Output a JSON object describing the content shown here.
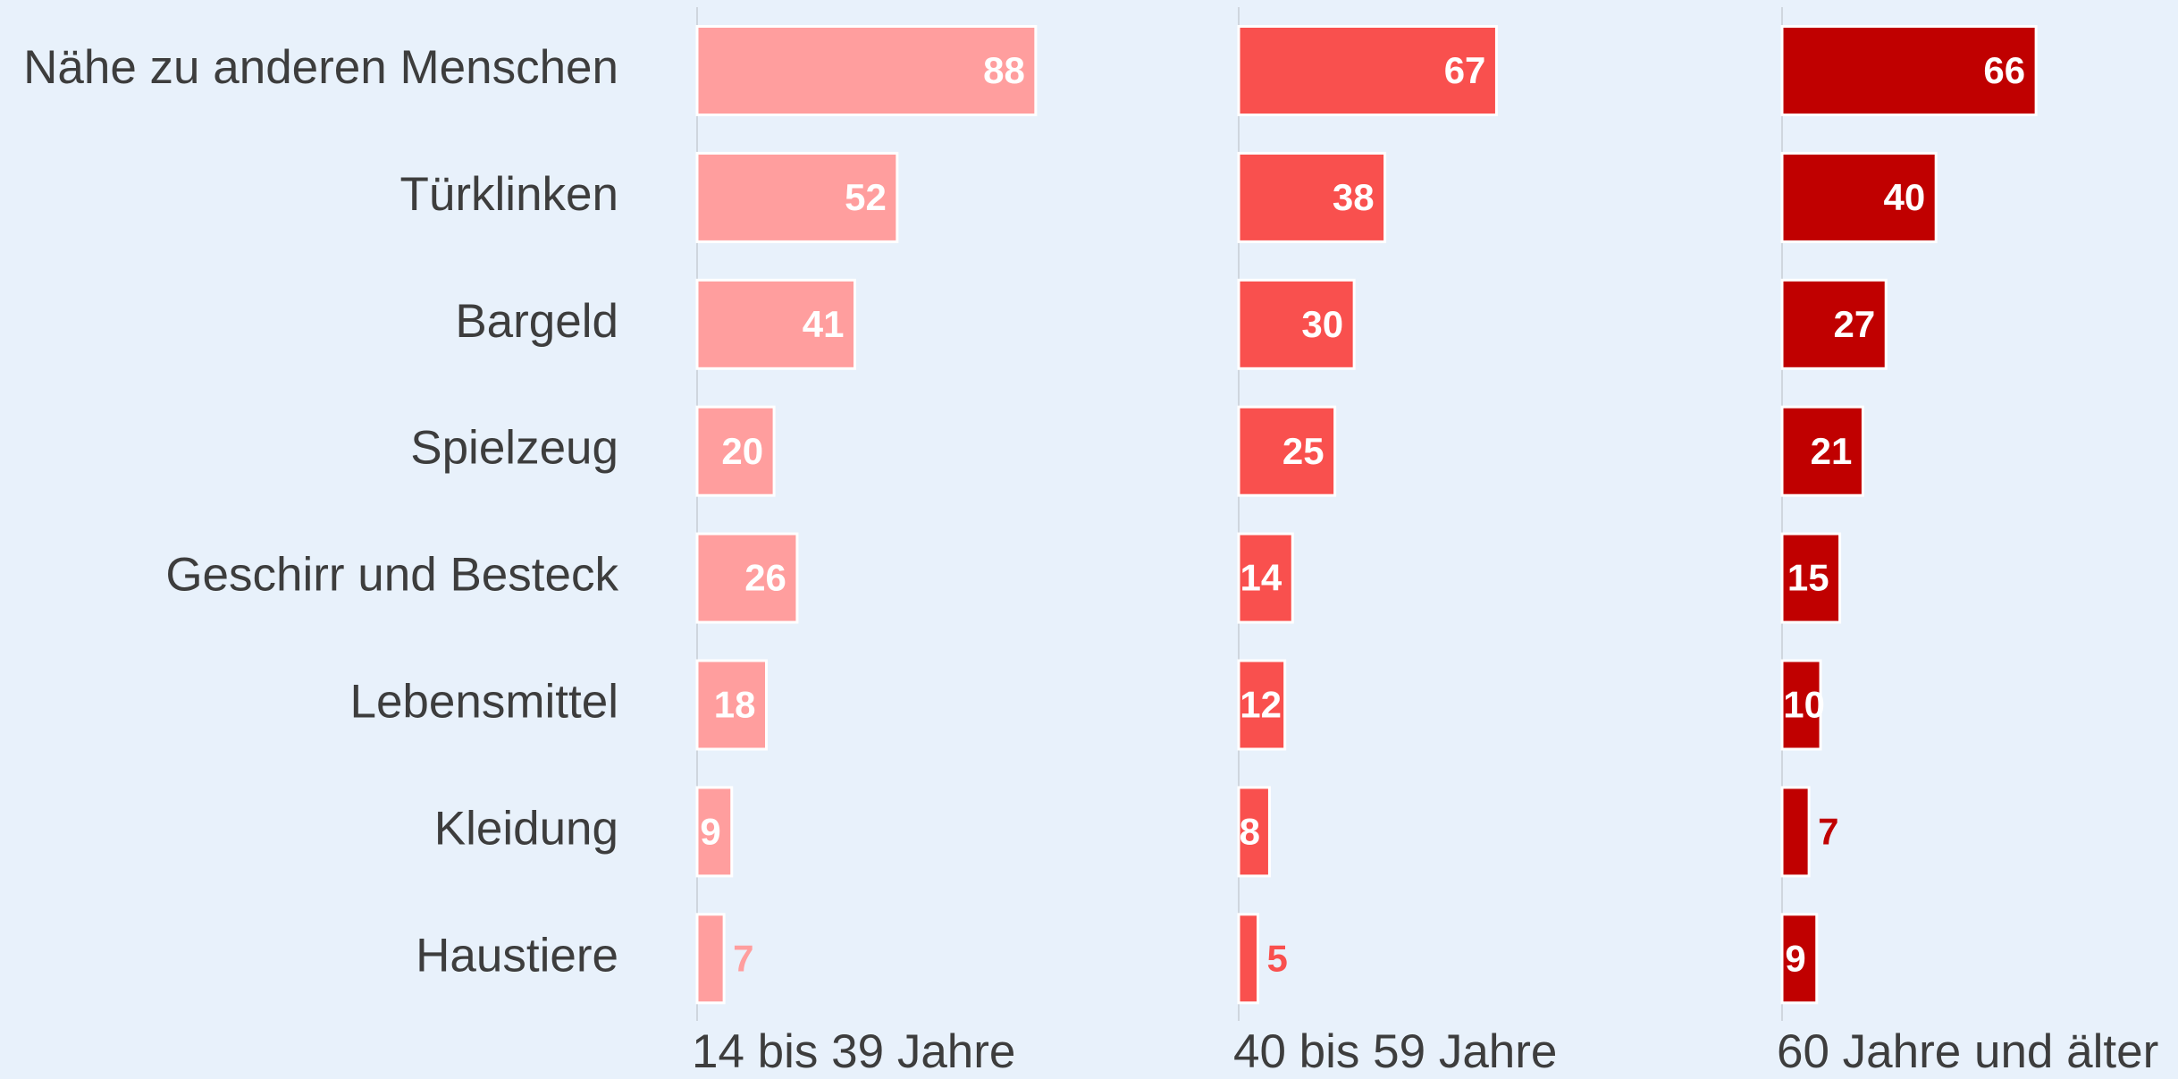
{
  "chart_data": {
    "type": "bar",
    "orientation": "horizontal",
    "categories": [
      "Nähe zu anderen Menschen",
      "Türklinken",
      "Bargeld",
      "Spielzeug",
      "Geschirr und Besteck",
      "Lebensmittel",
      "Kleidung",
      "Haustiere"
    ],
    "series": [
      {
        "name": "14 bis 39 Jahre",
        "color": "#ff9e9e",
        "values": [
          88,
          52,
          41,
          20,
          26,
          18,
          9,
          7
        ]
      },
      {
        "name": "40 bis 59 Jahre",
        "color": "#f9504e",
        "values": [
          67,
          38,
          30,
          25,
          14,
          12,
          8,
          5
        ]
      },
      {
        "name": "60 Jahre und älter",
        "color": "#c00000",
        "values": [
          66,
          40,
          27,
          21,
          15,
          10,
          7,
          9
        ]
      }
    ]
  }
}
